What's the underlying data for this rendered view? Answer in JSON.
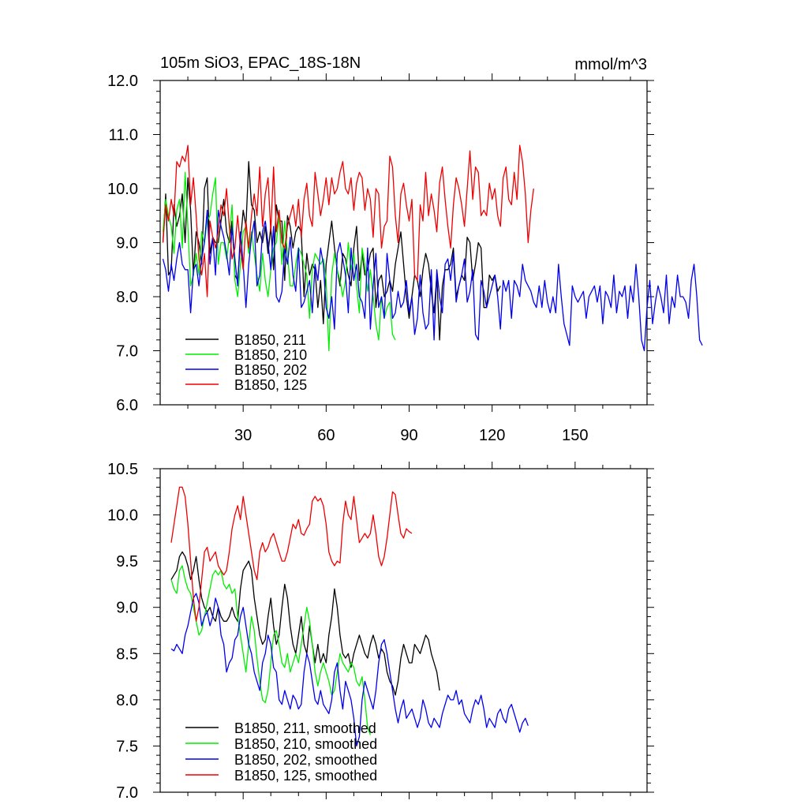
{
  "title_left": "105m SiO3, EPAC_18S-18N",
  "title_right": "mmol/m^3",
  "colors": {
    "s211": "#000000",
    "s210": "#00ee00",
    "s202": "#0000ee",
    "s125": "#ee0000"
  },
  "chart_data": [
    {
      "type": "line",
      "panel": "top",
      "title": "105m SiO3, EPAC_18S-18N",
      "units": "mmol/m^3",
      "xlim": [
        0,
        176
      ],
      "ylim": [
        6.0,
        12.0
      ],
      "xticks": [
        30,
        60,
        90,
        120,
        150
      ],
      "xticklabels": [
        "30",
        "60",
        "90",
        "120",
        "150"
      ],
      "yticks": [
        6,
        7,
        8,
        9,
        10,
        11,
        12
      ],
      "yticklabels": [
        "6.0",
        "7.0",
        "8.0",
        "9.0",
        "10.0",
        "11.0",
        "12.0"
      ],
      "legend": [
        "B1850, 211",
        "B1850, 210",
        "B1850, 202",
        "B1850, 125"
      ],
      "series": [
        {
          "name": "B1850, 211",
          "color_key": "s211",
          "x0": 1,
          "values": [
            9.0,
            9.9,
            8.4,
            8.5,
            9.7,
            9.3,
            9.5,
            9.9,
            9.0,
            10.2,
            9.6,
            8.4,
            9.2,
            9.0,
            8.6,
            10.0,
            10.2,
            8.8,
            9.1,
            9.0,
            9.0,
            9.4,
            9.8,
            9.2,
            9.0,
            9.4,
            8.4,
            8.3,
            9.0,
            9.6,
            9.3,
            10.5,
            9.7,
            9.6,
            9.0,
            9.2,
            9.0,
            9.3,
            8.8,
            9.3,
            8.5,
            9.7,
            9.4,
            9.4,
            8.3,
            9.5,
            9.3,
            8.9,
            9.2,
            9.3,
            9.2,
            8.0,
            8.8,
            8.4,
            8.6,
            8.5,
            7.8,
            8.3,
            7.5,
            8.6,
            9.0,
            9.4,
            8.9,
            8.5,
            8.2,
            8.8,
            8.7,
            8.4,
            8.2,
            8.9,
            9.3,
            8.3,
            8.8,
            8.4,
            8.5,
            8.8,
            8.9,
            7.8,
            8.3,
            8.4,
            8.0,
            8.1,
            8.3,
            8.1,
            8.6,
            8.9,
            9.2,
            8.6,
            8.0,
            7.6,
            8.0,
            8.4,
            8.3,
            8.0,
            8.5,
            8.8,
            8.6,
            8.1,
            7.7,
            8.4,
            7.2,
            8.2,
            8.5,
            8.5,
            8.6,
            8.9,
            8.0,
            8.2,
            8.4,
            8.3,
            9.1,
            9.0,
            8.3,
            8.6,
            9.0,
            8.9,
            7.8,
            7.8,
            8.4,
            8.3,
            8.4,
            8.1,
            8.2
          ]
        },
        {
          "name": "B1850, 210",
          "color_key": "s210",
          "x0": 1,
          "values": [
            9.2,
            9.8,
            9.5,
            9.3,
            8.8,
            9.6,
            9.8,
            8.9,
            10.3,
            9.3,
            8.2,
            8.4,
            8.8,
            8.4,
            9.2,
            9.0,
            9.4,
            9.5,
            9.9,
            10.2,
            8.6,
            9.0,
            9.0,
            8.7,
            9.1,
            9.7,
            8.3,
            8.0,
            8.6,
            9.2,
            9.3,
            8.8,
            9.2,
            8.8,
            8.4,
            8.1,
            8.8,
            8.3,
            8.0,
            8.5,
            8.9,
            9.0,
            9.5,
            8.6,
            9.4,
            8.8,
            8.2,
            8.2,
            8.6,
            8.9,
            8.8,
            8.6,
            8.4,
            7.6,
            8.5,
            8.8,
            8.7,
            8.6,
            8.7,
            8.3,
            7.0,
            8.4,
            8.8,
            8.5,
            8.3,
            8.0,
            8.3,
            9.0,
            8.5,
            8.8,
            8.2,
            7.7,
            8.9,
            8.6,
            8.1,
            8.5,
            8.0,
            7.5,
            7.2,
            8.0,
            7.6,
            7.8,
            7.9,
            7.3,
            7.2
          ]
        },
        {
          "name": "B1850, 202",
          "color_key": "s202",
          "x0": 1,
          "values": [
            8.7,
            8.5,
            8.1,
            8.6,
            8.3,
            8.7,
            9.0,
            8.6,
            8.5,
            8.5,
            7.7,
            8.5,
            8.6,
            8.2,
            8.7,
            9.0,
            9.6,
            8.6,
            9.1,
            8.4,
            9.6,
            9.3,
            9.1,
            8.8,
            8.4,
            9.3,
            8.7,
            8.2,
            9.2,
            8.6,
            7.8,
            8.6,
            9.1,
            9.4,
            8.2,
            8.4,
            9.2,
            9.4,
            9.0,
            8.5,
            9.3,
            8.0,
            7.9,
            8.1,
            8.9,
            8.6,
            9.1,
            8.4,
            8.1,
            8.9,
            7.8,
            7.9,
            8.1,
            8.3,
            7.7,
            8.6,
            8.3,
            8.9,
            8.6,
            7.8,
            7.6,
            8.0,
            7.4,
            8.8,
            9.0,
            8.7,
            8.4,
            7.7,
            8.9,
            8.3,
            8.6,
            8.0,
            7.9,
            7.6,
            8.9,
            7.4,
            8.2,
            8.8,
            7.8,
            8.0,
            7.6,
            8.8,
            8.3,
            7.6,
            7.7,
            8.1,
            7.8,
            7.9,
            8.3,
            7.7,
            8.0,
            7.3,
            7.6,
            8.4,
            7.7,
            7.4,
            7.5,
            8.5,
            7.2,
            8.5,
            8.0,
            7.7,
            8.6,
            8.7,
            8.3,
            8.8,
            7.9,
            8.2,
            8.4,
            8.7,
            7.9,
            8.1,
            8.5,
            7.3,
            7.2,
            8.3,
            8.1,
            7.8,
            8.0,
            8.2,
            8.4,
            8.0,
            7.4,
            8.3,
            8.1,
            8.3,
            7.6,
            8.3,
            8.2,
            8.0,
            8.6,
            8.3,
            8.2,
            8.1,
            7.9,
            7.8,
            8.2,
            7.8,
            8.3,
            7.9,
            7.7,
            8.0,
            7.7,
            8.6,
            8.0,
            7.5,
            7.3,
            7.1,
            8.2,
            8.0,
            7.9,
            8.0,
            8.1,
            7.6,
            8.0,
            8.1,
            8.2,
            7.9,
            8.2,
            7.5,
            8.1,
            8.0,
            7.8,
            8.4,
            7.7,
            8.1,
            8.0,
            8.2,
            7.6,
            8.2,
            7.9,
            8.6,
            8.0,
            7.2,
            7.0,
            7.8,
            8.3,
            7.5,
            7.9,
            8.2,
            8.0,
            7.7,
            8.4,
            7.5,
            8.0,
            7.8,
            8.4,
            8.0,
            8.0,
            7.9,
            7.6,
            8.3,
            8.6,
            8.0,
            7.2,
            7.1
          ]
        },
        {
          "name": "B1850, 125",
          "color_key": "s125",
          "x0": 1,
          "values": [
            9.0,
            9.7,
            9.4,
            9.8,
            9.5,
            10.5,
            10.4,
            10.6,
            10.5,
            10.8,
            9.7,
            10.2,
            9.5,
            8.7,
            8.4,
            8.8,
            8.0,
            9.4,
            9.1,
            8.9,
            9.2,
            9.7,
            9.5,
            10.0,
            9.3,
            8.7,
            8.9,
            9.5,
            8.9,
            8.5,
            9.4,
            8.9,
            9.5,
            9.9,
            9.5,
            10.4,
            9.3,
            9.9,
            10.2,
            9.2,
            10.4,
            9.2,
            9.6,
            9.0,
            8.9,
            9.3,
            9.5,
            9.7,
            9.3,
            9.8,
            9.1,
            9.8,
            10.1,
            9.5,
            9.3,
            10.3,
            9.9,
            9.5,
            9.8,
            10.2,
            9.7,
            10.2,
            9.9,
            10.0,
            10.3,
            10.5,
            10.0,
            9.9,
            10.2,
            9.6,
            10.1,
            10.3,
            10.2,
            9.6,
            10.0,
            9.8,
            9.1,
            10.0,
            9.9,
            8.9,
            9.3,
            9.4,
            10.6,
            10.4,
            9.5,
            9.0,
            9.9,
            10.1,
            9.7,
            9.4,
            9.8,
            8.4,
            8.3,
            9.7,
            9.4,
            10.3,
            9.5,
            9.9,
            9.6,
            9.2,
            10.1,
            10.4,
            9.8,
            9.3,
            8.9,
            9.7,
            10.2,
            10.0,
            9.7,
            9.3,
            10.0,
            10.7,
            9.8,
            10.4,
            10.3,
            9.5,
            9.6,
            9.5,
            10.1,
            9.8,
            10.0,
            9.5,
            9.3,
            10.2,
            10.4,
            9.8,
            9.7,
            10.3,
            9.8,
            10.8,
            10.5,
            9.9,
            9.0,
            9.6,
            10.0
          ]
        }
      ]
    },
    {
      "type": "line",
      "panel": "bottom",
      "xlim": [
        0,
        176
      ],
      "ylim": [
        7.0,
        10.5
      ],
      "xticks": [
        30,
        60,
        90,
        120,
        150
      ],
      "yticks": [
        7.0,
        7.5,
        8.0,
        8.5,
        9.0,
        9.5,
        10.0,
        10.5
      ],
      "yticklabels": [
        "7.0",
        "7.5",
        "8.0",
        "8.5",
        "9.0",
        "9.5",
        "10.0",
        "10.5"
      ],
      "legend": [
        "B1850, 211, smoothed",
        "B1850, 210, smoothed",
        "B1850, 202, smoothed",
        "B1850, 125, smoothed"
      ],
      "series": [
        {
          "name": "B1850, 211, smoothed",
          "color_key": "s211",
          "x0": 4,
          "values": [
            9.3,
            9.35,
            9.4,
            9.55,
            9.6,
            9.55,
            9.45,
            9.3,
            9.4,
            9.55,
            9.3,
            9.1,
            9.0,
            8.95,
            9.0,
            8.9,
            8.85,
            9.0,
            8.9,
            8.85,
            8.85,
            8.9,
            9.0,
            8.9,
            8.85,
            9.2,
            9.4,
            9.45,
            9.5,
            9.4,
            9.1,
            8.9,
            8.7,
            8.6,
            8.65,
            8.9,
            9.1,
            8.8,
            8.6,
            8.7,
            9.0,
            9.25,
            9.1,
            8.8,
            8.6,
            8.5,
            8.7,
            8.9,
            8.6,
            8.5,
            8.8,
            8.6,
            8.4,
            8.6,
            8.4,
            8.5,
            8.4,
            8.7,
            8.9,
            9.2,
            9.0,
            8.7,
            8.5,
            8.45,
            8.5,
            8.35,
            8.5,
            8.6,
            8.7,
            8.6,
            8.5,
            8.45,
            8.6,
            8.7,
            8.6,
            8.45,
            8.55,
            8.5,
            8.3,
            8.2,
            8.15,
            8.05,
            8.2,
            8.45,
            8.6,
            8.5,
            8.4,
            8.4,
            8.6,
            8.55,
            8.5,
            8.6,
            8.7,
            8.65,
            8.5,
            8.4,
            8.3,
            8.1
          ]
        },
        {
          "name": "B1850, 210, smoothed",
          "color_key": "s210",
          "x0": 4,
          "values": [
            9.3,
            9.2,
            9.15,
            9.4,
            9.45,
            9.3,
            9.2,
            9.15,
            9.0,
            8.85,
            8.7,
            8.75,
            8.9,
            9.05,
            9.2,
            9.35,
            9.4,
            9.35,
            9.4,
            9.25,
            9.2,
            9.25,
            9.15,
            9.2,
            8.9,
            8.7,
            8.5,
            8.3,
            8.6,
            8.9,
            8.75,
            8.45,
            8.2,
            8.0,
            7.97,
            8.1,
            8.4,
            8.7,
            8.75,
            8.6,
            8.4,
            8.35,
            8.5,
            8.3,
            8.4,
            8.5,
            8.4,
            8.6,
            8.8,
            9.0,
            8.85,
            8.6,
            8.3,
            8.15,
            8.3,
            8.4,
            8.3,
            8.2,
            8.05,
            8.1,
            8.3,
            8.5,
            8.4,
            8.35,
            8.3,
            8.4,
            8.35,
            8.2,
            8.15,
            8.25,
            8.0,
            7.7,
            7.62
          ]
        },
        {
          "name": "B1850, 202, smoothed",
          "color_key": "s202",
          "x0": 4,
          "values": [
            8.55,
            8.53,
            8.6,
            8.55,
            8.5,
            8.7,
            8.8,
            8.95,
            9.1,
            9.15,
            9.05,
            8.8,
            8.9,
            8.95,
            8.8,
            8.9,
            9.1,
            9.0,
            8.7,
            8.6,
            8.3,
            8.4,
            8.45,
            8.65,
            8.7,
            8.9,
            9.0,
            8.8,
            8.6,
            8.5,
            8.3,
            8.2,
            8.1,
            8.4,
            8.5,
            8.7,
            8.6,
            8.35,
            8.3,
            8.0,
            7.95,
            8.1,
            8.0,
            7.9,
            8.05,
            8.0,
            7.9,
            7.95,
            8.3,
            8.5,
            8.4,
            8.2,
            8.0,
            7.95,
            8.1,
            7.95,
            7.9,
            7.85,
            8.0,
            8.3,
            8.4,
            8.1,
            7.9,
            8.2,
            8.1,
            8.0,
            7.8,
            7.5,
            7.6,
            8.0,
            8.2,
            8.1,
            8.0,
            7.9,
            8.1,
            8.4,
            8.6,
            8.65,
            8.5,
            8.3,
            8.1,
            7.9,
            7.75,
            7.9,
            8.0,
            7.8,
            7.85,
            7.9,
            7.8,
            7.7,
            7.8,
            8.0,
            7.9,
            7.75,
            7.7,
            7.8,
            7.75,
            7.7,
            7.85,
            7.95,
            8.05,
            8.0,
            8.0,
            8.1,
            7.95,
            8.0,
            7.85,
            7.8,
            7.75,
            7.9,
            8.0,
            7.95,
            8.05,
            7.9,
            7.7,
            7.8,
            7.75,
            7.7,
            7.85,
            7.9,
            7.8,
            7.75,
            7.9,
            7.95,
            7.85,
            7.75,
            7.65,
            7.75,
            7.8,
            7.72
          ]
        },
        {
          "name": "B1850, 125, smoothed",
          "color_key": "s125",
          "x0": 4,
          "values": [
            9.7,
            9.9,
            10.1,
            10.3,
            10.3,
            10.2,
            9.9,
            9.5,
            9.1,
            8.85,
            9.0,
            9.3,
            9.6,
            9.65,
            9.5,
            9.55,
            9.6,
            9.45,
            9.4,
            9.35,
            9.4,
            9.6,
            9.85,
            10.0,
            10.1,
            9.95,
            10.2,
            10.0,
            9.8,
            9.6,
            9.4,
            9.3,
            9.6,
            9.7,
            9.6,
            9.65,
            9.75,
            9.8,
            9.7,
            9.6,
            9.5,
            9.5,
            9.6,
            9.75,
            9.9,
            9.85,
            9.95,
            9.8,
            9.78,
            9.85,
            9.9,
            10.15,
            10.2,
            10.15,
            10.18,
            10.1,
            9.9,
            9.6,
            9.5,
            9.45,
            9.5,
            9.48,
            9.9,
            10.15,
            10.0,
            9.95,
            10.2,
            9.95,
            9.7,
            9.75,
            9.8,
            9.75,
            9.8,
            10.0,
            9.8,
            9.55,
            9.45,
            9.55,
            9.75,
            10.0,
            10.25,
            10.22,
            10.0,
            9.8,
            9.75,
            9.85,
            9.82,
            9.8
          ]
        }
      ]
    }
  ]
}
